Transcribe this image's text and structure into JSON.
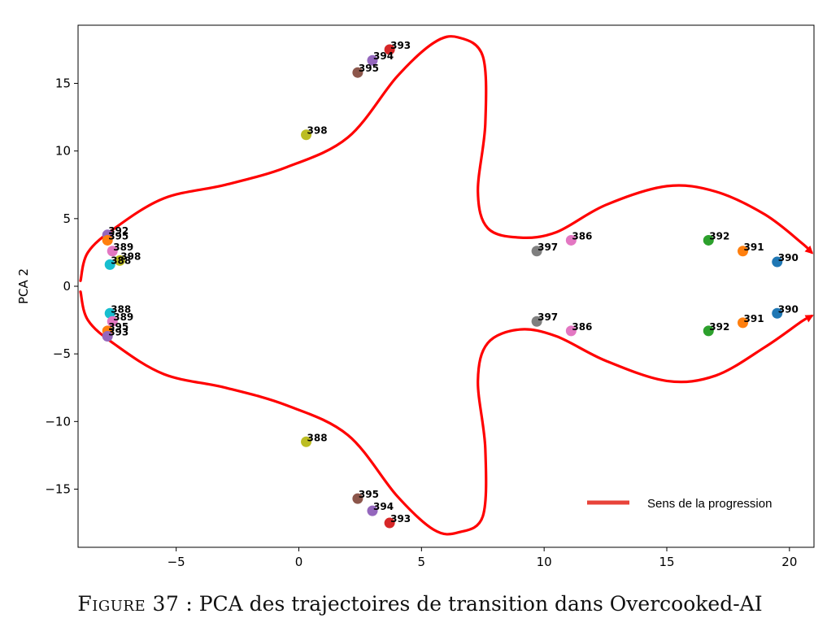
{
  "caption": {
    "figure": "Figure 37",
    "separator": " : ",
    "text": "PCA des trajectoires de transition dans Overcooked-AI"
  },
  "chart_data": {
    "type": "scatter",
    "title": "",
    "xlabel": "",
    "ylabel": "PCA 2",
    "xlim": [
      -9,
      21
    ],
    "ylim": [
      -19.3,
      19.3
    ],
    "xticks": [
      -5,
      0,
      5,
      10,
      15,
      20
    ],
    "yticks": [
      -15,
      -10,
      -5,
      0,
      5,
      10,
      15
    ],
    "xtick_labels": [
      "−5",
      "0",
      "5",
      "10",
      "15",
      "20"
    ],
    "ytick_labels": [
      "−15",
      "−10",
      "−5",
      "0",
      "5",
      "10",
      "15"
    ],
    "grid": false,
    "legend": {
      "location": "lower-right",
      "entries": [
        {
          "label": "Sens de la progression",
          "color": "#e8433a"
        }
      ]
    },
    "points": [
      {
        "x": 19.5,
        "y": 1.8,
        "color": "#1f77b4",
        "label": "390"
      },
      {
        "x": 18.1,
        "y": 2.6,
        "color": "#ff7f0e",
        "label": "391"
      },
      {
        "x": 16.7,
        "y": 3.4,
        "color": "#2ca02c",
        "label": "392"
      },
      {
        "x": 11.1,
        "y": 3.4,
        "color": "#e377c2",
        "label": "386"
      },
      {
        "x": 9.7,
        "y": 2.6,
        "color": "#7f7f7f",
        "label": "397"
      },
      {
        "x": 3.7,
        "y": 17.5,
        "color": "#d62728",
        "label": "393"
      },
      {
        "x": 3.0,
        "y": 16.7,
        "color": "#9467bd",
        "label": "394"
      },
      {
        "x": 2.4,
        "y": 15.8,
        "color": "#8c564b",
        "label": "395"
      },
      {
        "x": 0.3,
        "y": 11.2,
        "color": "#bcbd22",
        "label": "398"
      },
      {
        "x": -7.8,
        "y": 3.8,
        "color": "#9467bd",
        "label": "392"
      },
      {
        "x": -7.8,
        "y": 3.4,
        "color": "#ff7f0e",
        "label": "395"
      },
      {
        "x": -7.6,
        "y": 2.6,
        "color": "#e377c2",
        "label": "389"
      },
      {
        "x": -7.7,
        "y": 1.6,
        "color": "#17becf",
        "label": "388"
      },
      {
        "x": -7.3,
        "y": 1.9,
        "color": "#bcbd22",
        "label": "398"
      },
      {
        "x": 19.5,
        "y": -2.0,
        "color": "#1f77b4",
        "label": "390"
      },
      {
        "x": 18.1,
        "y": -2.7,
        "color": "#ff7f0e",
        "label": "391"
      },
      {
        "x": 16.7,
        "y": -3.3,
        "color": "#2ca02c",
        "label": "392"
      },
      {
        "x": 11.1,
        "y": -3.3,
        "color": "#e377c2",
        "label": "386"
      },
      {
        "x": 9.7,
        "y": -2.6,
        "color": "#7f7f7f",
        "label": "397"
      },
      {
        "x": 3.7,
        "y": -17.5,
        "color": "#d62728",
        "label": "393"
      },
      {
        "x": 3.0,
        "y": -16.6,
        "color": "#9467bd",
        "label": "394"
      },
      {
        "x": 2.4,
        "y": -15.7,
        "color": "#8c564b",
        "label": "395"
      },
      {
        "x": 0.3,
        "y": -11.5,
        "color": "#bcbd22",
        "label": "388"
      },
      {
        "x": -7.7,
        "y": -2.0,
        "color": "#17becf",
        "label": "388"
      },
      {
        "x": -7.6,
        "y": -2.6,
        "color": "#e377c2",
        "label": "389"
      },
      {
        "x": -7.8,
        "y": -3.3,
        "color": "#ff7f0e",
        "label": "395"
      },
      {
        "x": -7.8,
        "y": -3.7,
        "color": "#9467bd",
        "label": "393"
      }
    ],
    "arrow_path": [
      [
        -8.9,
        0.4
      ],
      [
        -8.6,
        2.5
      ],
      [
        -7.5,
        4.3
      ],
      [
        -5.5,
        6.5
      ],
      [
        -3.0,
        7.5
      ],
      [
        -0.5,
        8.8
      ],
      [
        2.0,
        11.0
      ],
      [
        4.0,
        15.5
      ],
      [
        5.5,
        18.0
      ],
      [
        6.5,
        18.4
      ],
      [
        7.5,
        17.0
      ],
      [
        7.6,
        12.0
      ],
      [
        7.3,
        7.0
      ],
      [
        7.7,
        4.3
      ],
      [
        9.0,
        3.6
      ],
      [
        10.5,
        4.0
      ],
      [
        12.5,
        6.0
      ],
      [
        15.0,
        7.4
      ],
      [
        17.0,
        7.0
      ],
      [
        19.0,
        5.3
      ],
      [
        20.5,
        3.2
      ],
      [
        20.9,
        2.5
      ]
    ],
    "arrow_path_lower": [
      [
        -8.9,
        -0.4
      ],
      [
        -8.6,
        -2.5
      ],
      [
        -7.5,
        -4.3
      ],
      [
        -5.5,
        -6.5
      ],
      [
        -3.0,
        -7.5
      ],
      [
        -0.5,
        -8.8
      ],
      [
        2.0,
        -11.0
      ],
      [
        4.0,
        -15.5
      ],
      [
        5.5,
        -18.0
      ],
      [
        6.5,
        -18.2
      ],
      [
        7.5,
        -17.0
      ],
      [
        7.6,
        -12.0
      ],
      [
        7.3,
        -7.0
      ],
      [
        7.7,
        -4.2
      ],
      [
        9.0,
        -3.2
      ],
      [
        10.5,
        -3.7
      ],
      [
        12.5,
        -5.5
      ],
      [
        15.0,
        -7.0
      ],
      [
        17.0,
        -6.6
      ],
      [
        19.0,
        -4.5
      ],
      [
        20.5,
        -2.6
      ],
      [
        20.9,
        -2.2
      ]
    ],
    "series_color": "#ff0000"
  }
}
